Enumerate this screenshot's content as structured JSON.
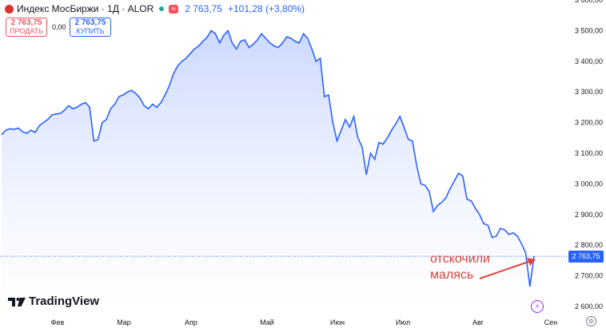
{
  "header": {
    "title": "Индекс МосБиржи · 1Д · ALOR",
    "price": "2 763,75",
    "change": "+101,28 (+3,80%)",
    "approx_badge": "≈"
  },
  "trade": {
    "sell_price": "2 763,75",
    "sell_label": "ПРОДАТЬ",
    "spread": "0,00",
    "buy_price": "2 763,75",
    "buy_label": "КУПИТЬ"
  },
  "branding": {
    "watermark": "TradingView"
  },
  "annotation": {
    "line1": "отскочили",
    "line2": "малясь"
  },
  "price_tag": "2 763,75",
  "colors": {
    "line": "#2962ff",
    "fill_top": "#c9d6ff",
    "annotation": "#d9463c",
    "sell": "#f7525f",
    "buy": "#2962ff"
  },
  "icons": {
    "logo": "moex-logo-icon",
    "flash": "flash-icon",
    "settings": "settings-icon",
    "watermark": "tradingview-logo-icon"
  },
  "chart_data": {
    "type": "area",
    "title": "Индекс МосБиржи · 1Д · ALOR",
    "x_ticks": [
      "Фев",
      "Мар",
      "Апр",
      "Май",
      "Июн",
      "Июл",
      "Авг",
      "Сен"
    ],
    "y_ticks": [
      "2 600,00",
      "2 700,00",
      "2 800,00",
      "2 900,00",
      "3 000,00",
      "3 100,00",
      "3 200,00",
      "3 300,00",
      "3 400,00",
      "3 500,00",
      "3 600,00"
    ],
    "ylim": [
      2600,
      3600
    ],
    "grid": false,
    "last_value": 2763.75,
    "series": [
      {
        "values": [
          3160,
          3175,
          3180,
          3178,
          3182,
          3170,
          3165,
          3175,
          3168,
          3190,
          3200,
          3210,
          3225,
          3228,
          3230,
          3240,
          3255,
          3245,
          3250,
          3260,
          3265,
          3250,
          3140,
          3145,
          3200,
          3210,
          3245,
          3260,
          3285,
          3290,
          3300,
          3305,
          3295,
          3280,
          3255,
          3245,
          3260,
          3250,
          3265,
          3290,
          3320,
          3360,
          3385,
          3400,
          3410,
          3425,
          3440,
          3450,
          3465,
          3478,
          3500,
          3490,
          3460,
          3485,
          3500,
          3460,
          3440,
          3465,
          3470,
          3445,
          3455,
          3470,
          3490,
          3475,
          3460,
          3450,
          3445,
          3460,
          3480,
          3475,
          3465,
          3460,
          3490,
          3475,
          3440,
          3400,
          3410,
          3285,
          3290,
          3200,
          3140,
          3175,
          3210,
          3185,
          3220,
          3150,
          3120,
          3030,
          3100,
          3080,
          3135,
          3130,
          3150,
          3175,
          3195,
          3220,
          3185,
          3145,
          3140,
          3060,
          3000,
          2995,
          2975,
          2910,
          2930,
          2940,
          2955,
          2985,
          3010,
          3035,
          3025,
          2950,
          2945,
          2920,
          2900,
          2870,
          2865,
          2825,
          2830,
          2855,
          2850,
          2835,
          2840,
          2830,
          2805,
          2775,
          2665,
          2763.75
        ]
      }
    ]
  }
}
